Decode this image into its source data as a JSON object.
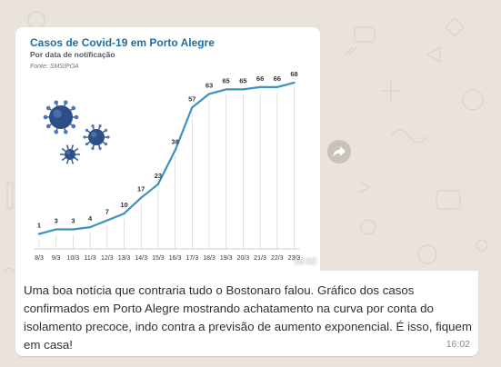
{
  "message": {
    "time_image": "16:02",
    "time_text": "16:02",
    "text": "Uma boa notícia que contraria tudo o Bostonaro falou. Gráfico dos casos confirmados em Porto Alegre mostrando achatamento na curva por conta do isolamento precoce, indo contra a previsão de aumento exponencial. É isso, fiquem em casa!"
  },
  "icons": {
    "forward": "forward-arrow-icon",
    "virus": "coronavirus-icon"
  },
  "colors": {
    "line": "#3e92bf",
    "title": "#1f6f9e",
    "virus_body": "#2d4e86",
    "wallpaper": "#e9e3db"
  },
  "chart_data": {
    "type": "line",
    "title": "Casos de Covid-19 em Porto Alegre",
    "subtitle": "Por data de notificação",
    "source": "Fonte: SMS/POA",
    "xlabel": "",
    "ylabel": "",
    "categories": [
      "8/3",
      "9/3",
      "10/3",
      "11/3",
      "12/3",
      "13/3",
      "14/3",
      "15/3",
      "16/3",
      "17/3",
      "18/3",
      "19/3",
      "20/3",
      "21/3",
      "22/3",
      "23/3"
    ],
    "series": [
      {
        "values": [
          1,
          3,
          3,
          4,
          7,
          10,
          17,
          23,
          38,
          57,
          63,
          65,
          65,
          66,
          66,
          68
        ]
      }
    ],
    "ylim": [
      0,
      70
    ],
    "grid": "vertical"
  }
}
